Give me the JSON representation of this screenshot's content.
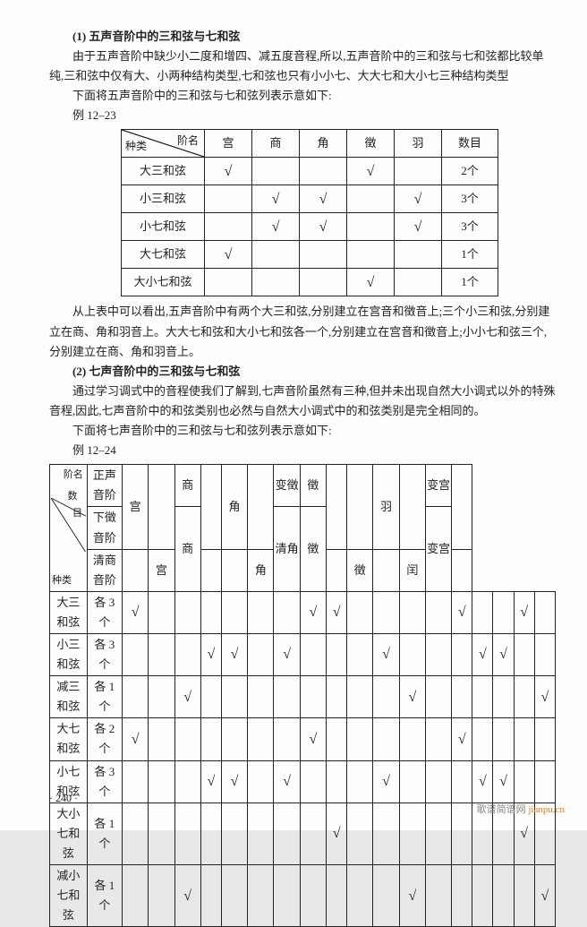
{
  "section1": {
    "heading": "(1) 五声音阶中的三和弦与七和弦",
    "para1": "由于五声音阶中缺少小二度和增四、减五度音程,所以,五声音阶中的三和弦与七和弦都比较单纯,三和弦中仅有大、小两种结构类型,七和弦也只有小小七、大大七和大小七三种结构类型",
    "para2": "下面将五声音阶中的三和弦与七和弦列表示意如下:",
    "example": "例 12–23"
  },
  "table1": {
    "diag_top": "阶名",
    "diag_bottom": "种类",
    "columns": [
      "宫",
      "商",
      "角",
      "徵",
      "羽",
      "数目"
    ],
    "rows": [
      {
        "label": "大三和弦",
        "cells": [
          "√",
          "",
          "",
          "√",
          ""
        ],
        "count": "2个"
      },
      {
        "label": "小三和弦",
        "cells": [
          "",
          "√",
          "√",
          "",
          "√"
        ],
        "count": "3个"
      },
      {
        "label": "小七和弦",
        "cells": [
          "",
          "√",
          "√",
          "",
          "√"
        ],
        "count": "3个"
      },
      {
        "label": "大七和弦",
        "cells": [
          "√",
          "",
          "",
          "",
          ""
        ],
        "count": "1个"
      },
      {
        "label": "大小七和弦",
        "cells": [
          "",
          "",
          "",
          "√",
          ""
        ],
        "count": "1个"
      }
    ]
  },
  "mid": {
    "para1": "从上表中可以看出,五声音阶中有两个大三和弦,分别建立在宫音和徵音上;三个小三和弦,分别建立在商、角和羽音上。大大七和弦和大小七和弦各一个,分别建立在宫音和徵音上;小小七和弦三个,分别建立在商、角和羽音上。",
    "heading": "(2) 七声音阶中的三和弦与七和弦",
    "para2": "通过学习调式中的音程使我们了解到,七声音阶虽然有三种,但并未出现自然大小调式以外的特殊音程,因此,七声音阶中的和弦类别也必然与自然大小调式中的和弦类别是完全相同的。",
    "para3": "下面将七声音阶中的三和弦与七和弦列表示意如下:",
    "example": "例 12–24"
  },
  "table2": {
    "diag_labels": {
      "top": "阶名",
      "mid": "数\n　目",
      "bottom": "种类"
    },
    "scale_col_header": [
      "正声音阶",
      "下徵音阶",
      "清商音阶"
    ],
    "group_headers_row1": [
      "宫",
      "",
      "商",
      "",
      "角",
      "",
      "变徵",
      "徵",
      "",
      "",
      "羽",
      "",
      "变宫",
      ""
    ],
    "group_headers_row2": [
      "",
      "",
      "",
      "商",
      "",
      "",
      "",
      "",
      "徵",
      "",
      "",
      "羽",
      "",
      "变宫"
    ],
    "group_headers_row3": [
      "",
      "宫",
      "",
      "",
      "",
      "角",
      "清角",
      "",
      "",
      "徵",
      "闰",
      "",
      "",
      ""
    ],
    "rows": [
      {
        "label": "大三和弦",
        "count": "各 3 个",
        "cells": [
          "√",
          "",
          "",
          "",
          "",
          "",
          "",
          "√",
          "√",
          "",
          "",
          "",
          "",
          "√",
          "",
          "",
          "√",
          ""
        ]
      },
      {
        "label": "小三和弦",
        "count": "各 3 个",
        "cells": [
          "",
          "",
          "",
          "√",
          "√",
          "",
          "√",
          "",
          "",
          "",
          "√",
          "",
          "",
          "",
          "√",
          "√",
          "",
          ""
        ]
      },
      {
        "label": "减三和弦",
        "count": "各 1 个",
        "cells": [
          "",
          "",
          "√",
          "",
          "",
          "",
          "",
          "",
          "",
          "",
          "",
          "√",
          "",
          "",
          "",
          "",
          "",
          "√"
        ]
      },
      {
        "label": "大七和弦",
        "count": "各 2 个",
        "cells": [
          "√",
          "",
          "",
          "",
          "",
          "",
          "",
          "√",
          "",
          "",
          "",
          "",
          "",
          "√",
          "",
          "",
          "",
          ""
        ]
      },
      {
        "label": "小七和弦",
        "count": "各 3 个",
        "cells": [
          "",
          "",
          "",
          "√",
          "√",
          "",
          "√",
          "",
          "",
          "",
          "√",
          "",
          "",
          "",
          "√",
          "√",
          "",
          ""
        ]
      },
      {
        "label": "大小七和弦",
        "count": "各 1 个",
        "cells": [
          "",
          "",
          "",
          "",
          "",
          "",
          "",
          "",
          "√",
          "",
          "",
          "",
          "",
          "",
          "",
          "",
          "√",
          ""
        ]
      },
      {
        "label": "减小七和弦",
        "count": "各 1 个",
        "cells": [
          "",
          "",
          "√",
          "",
          "",
          "",
          "",
          "",
          "",
          "",
          "",
          "√",
          "",
          "",
          "",
          "",
          "",
          "√"
        ]
      }
    ]
  },
  "page_num": "· 240 ·",
  "watermark": {
    "a": "歌谱简谱网 ",
    "b": "jianpu.cn"
  }
}
